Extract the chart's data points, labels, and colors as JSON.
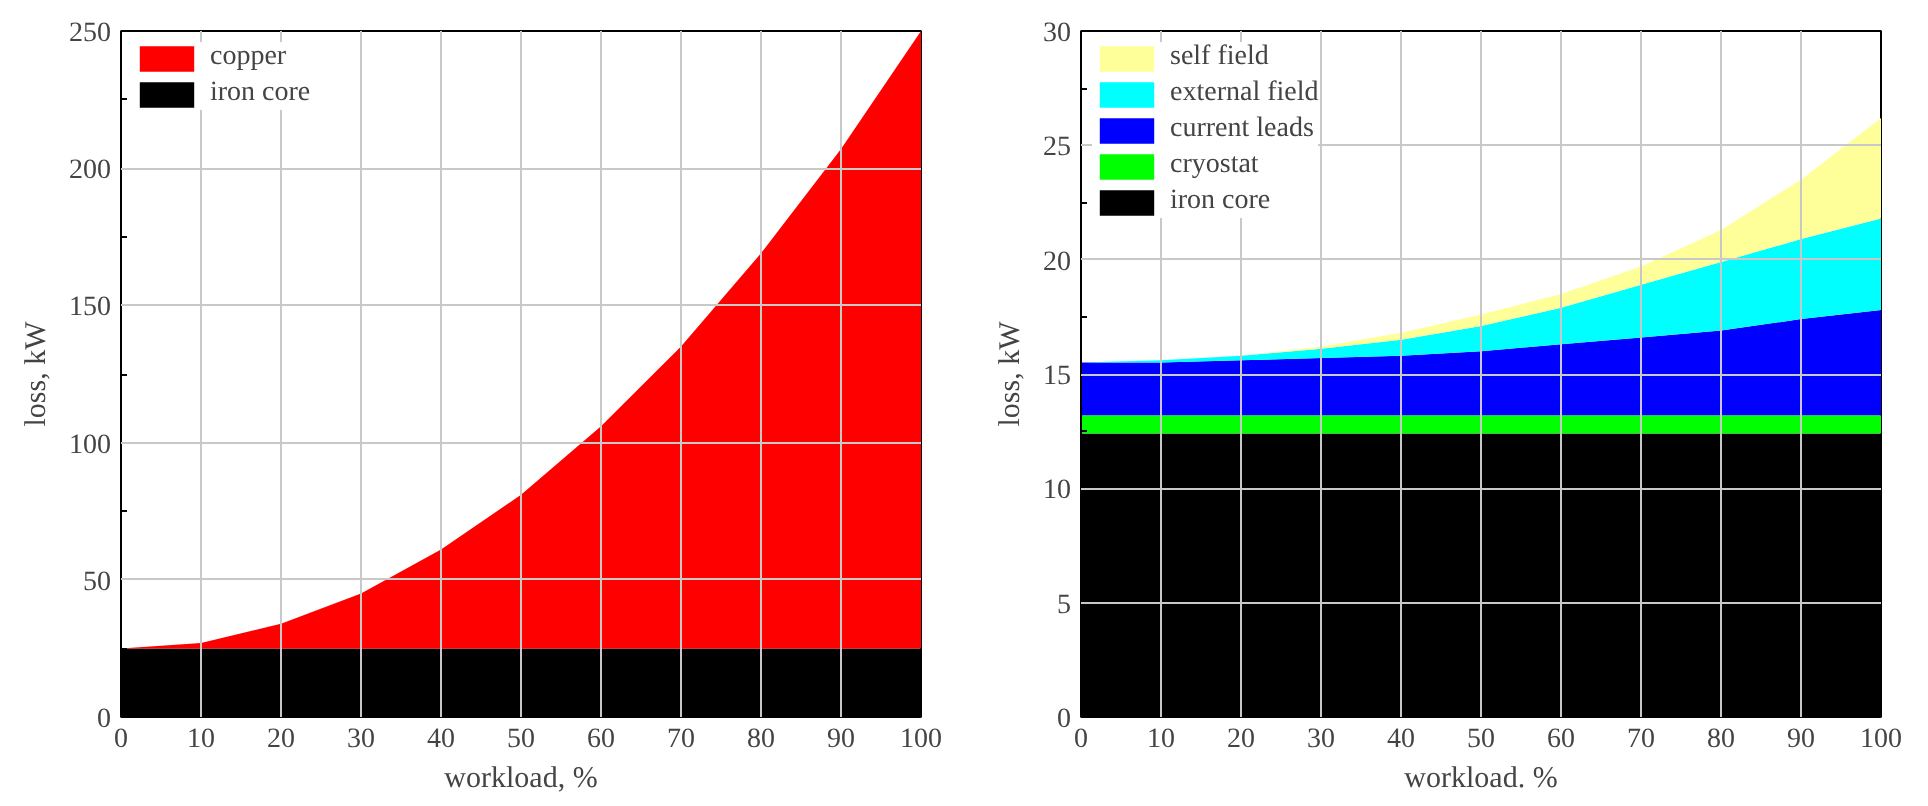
{
  "chart_data": [
    {
      "type": "area",
      "stacked": true,
      "xlabel": "workload, %",
      "ylabel": "loss, kW",
      "x": [
        0,
        10,
        20,
        30,
        40,
        50,
        60,
        70,
        80,
        90,
        100
      ],
      "series": [
        {
          "name": "iron core",
          "color": "#000000",
          "values": [
            25,
            25,
            25,
            25,
            25,
            25,
            25,
            25,
            25,
            25,
            25
          ]
        },
        {
          "name": "copper",
          "color": "#ff0000",
          "values": [
            0,
            2,
            9,
            20,
            36,
            56,
            81,
            110,
            144,
            182,
            225
          ]
        }
      ],
      "xlim": [
        0,
        100
      ],
      "xticks": [
        0,
        10,
        20,
        30,
        40,
        50,
        60,
        70,
        80,
        90,
        100
      ],
      "ylim": [
        0,
        250
      ],
      "yticks": [
        0,
        50,
        100,
        150,
        200,
        250
      ],
      "grid": true,
      "legend": "top left"
    },
    {
      "type": "area",
      "stacked": true,
      "xlabel": "workload. %",
      "ylabel": "loss, kW",
      "x": [
        0,
        10,
        20,
        30,
        40,
        50,
        60,
        70,
        80,
        90,
        100
      ],
      "series": [
        {
          "name": "iron core",
          "color": "#000000",
          "values": [
            12.4,
            12.4,
            12.4,
            12.4,
            12.4,
            12.4,
            12.4,
            12.4,
            12.4,
            12.4,
            12.4
          ]
        },
        {
          "name": "cryostat",
          "color": "#00ff00",
          "values": [
            0.8,
            0.8,
            0.8,
            0.8,
            0.8,
            0.8,
            0.8,
            0.8,
            0.8,
            0.8,
            0.8
          ]
        },
        {
          "name": "current leads",
          "color": "#0000ff",
          "values": [
            2.3,
            2.3,
            2.4,
            2.5,
            2.6,
            2.8,
            3.1,
            3.4,
            3.7,
            4.2,
            4.6
          ]
        },
        {
          "name": "external field",
          "color": "#00ffff",
          "values": [
            0,
            0.1,
            0.2,
            0.4,
            0.7,
            1.1,
            1.6,
            2.3,
            3.0,
            3.5,
            4.0
          ]
        },
        {
          "name": "self field",
          "color": "#ffff99",
          "values": [
            0,
            0,
            0,
            0.1,
            0.3,
            0.5,
            0.6,
            0.8,
            1.4,
            2.6,
            4.4
          ]
        }
      ],
      "xlim": [
        0,
        100
      ],
      "xticks": [
        0,
        10,
        20,
        30,
        40,
        50,
        60,
        70,
        80,
        90,
        100
      ],
      "ylim": [
        0,
        30
      ],
      "yticks": [
        0,
        5,
        10,
        15,
        20,
        25,
        30
      ],
      "grid": true,
      "legend": "top left"
    }
  ]
}
